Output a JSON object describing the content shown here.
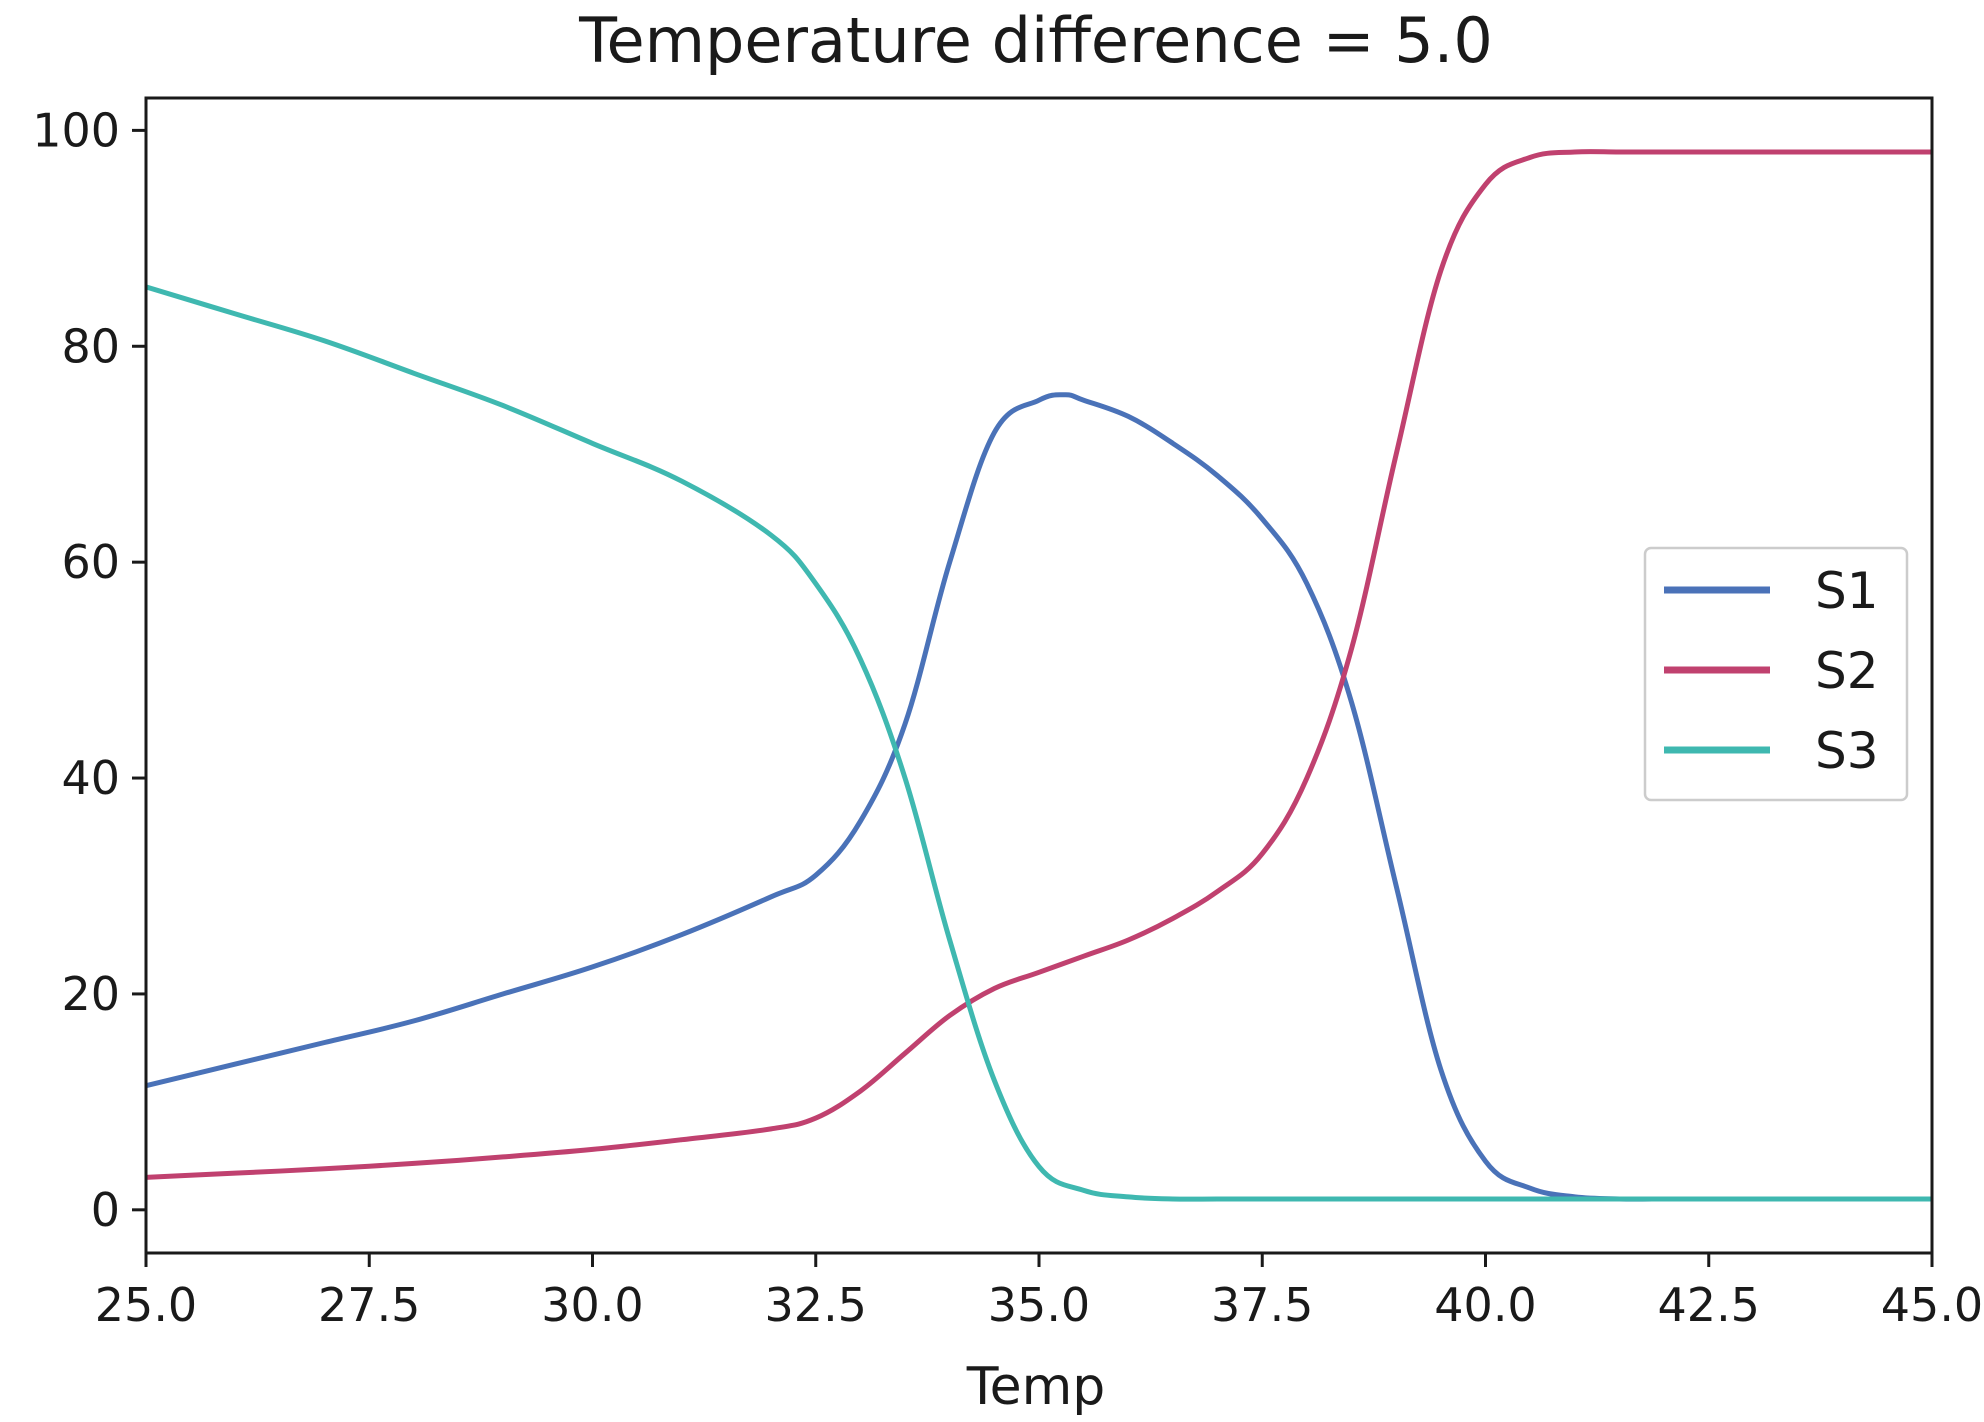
{
  "chart_data": {
    "type": "line",
    "title": "Temperature difference = 5.0",
    "xlabel": "Temp",
    "ylabel": "",
    "xlim": [
      25.0,
      45.0
    ],
    "ylim": [
      -4,
      103
    ],
    "xticks": [
      25.0,
      27.5,
      30.0,
      32.5,
      35.0,
      37.5,
      40.0,
      42.5,
      45.0
    ],
    "xtick_labels": [
      "25.0",
      "27.5",
      "30.0",
      "32.5",
      "35.0",
      "37.5",
      "40.0",
      "42.5",
      "45.0"
    ],
    "yticks": [
      0,
      20,
      40,
      60,
      80,
      100
    ],
    "ytick_labels": [
      "0",
      "20",
      "40",
      "60",
      "80",
      "100"
    ],
    "grid": false,
    "legend_position": "center-right",
    "series": [
      {
        "name": "S1",
        "color": "#4a72b8",
        "x": [
          25,
          26,
          27,
          28,
          29,
          30,
          31,
          32,
          32.5,
          33,
          33.5,
          34,
          34.5,
          35,
          35.3,
          35.5,
          36,
          36.5,
          37,
          37.5,
          38,
          38.5,
          39,
          39.5,
          40,
          40.5,
          41,
          41.5,
          42,
          43,
          44,
          45
        ],
        "y": [
          11.5,
          13.5,
          15.5,
          17.5,
          20,
          22.5,
          25.5,
          29,
          31,
          36,
          45,
          60,
          72,
          75,
          75.5,
          75,
          73.5,
          71,
          68,
          64,
          58,
          47,
          30,
          13,
          4.5,
          2,
          1.2,
          1,
          1,
          1,
          1,
          1
        ]
      },
      {
        "name": "S2",
        "color": "#c0416f",
        "x": [
          25,
          26,
          27,
          28,
          29,
          30,
          31,
          32,
          32.5,
          33,
          33.5,
          34,
          34.5,
          35,
          35.5,
          36,
          36.5,
          37,
          37.5,
          38,
          38.5,
          39,
          39.5,
          40,
          40.5,
          41,
          41.5,
          42,
          43,
          44,
          45
        ],
        "y": [
          3,
          3.4,
          3.8,
          4.3,
          4.9,
          5.6,
          6.5,
          7.5,
          8.5,
          11,
          14.5,
          18,
          20.5,
          22,
          23.5,
          25,
          27,
          29.5,
          33,
          40,
          52,
          70,
          87,
          95,
          97.5,
          98,
          98,
          98,
          98,
          98,
          98
        ]
      },
      {
        "name": "S3",
        "color": "#3fb8b0",
        "x": [
          25,
          26,
          27,
          28,
          29,
          30,
          31,
          32,
          32.5,
          33,
          33.5,
          34,
          34.5,
          35,
          35.5,
          36,
          36.5,
          37,
          38,
          39,
          40,
          41,
          42,
          43,
          44,
          45
        ],
        "y": [
          85.5,
          83,
          80.5,
          77.5,
          74.5,
          71,
          67.5,
          62.5,
          58,
          51,
          40,
          25,
          12,
          4,
          1.8,
          1.2,
          1,
          1,
          1,
          1,
          1,
          1,
          1,
          1,
          1,
          1
        ]
      }
    ]
  }
}
